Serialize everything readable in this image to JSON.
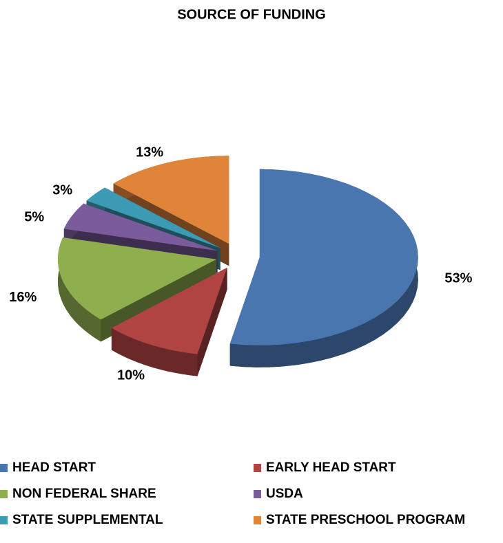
{
  "chart_data": {
    "type": "pie",
    "title": "SOURCE OF FUNDING",
    "categories": [
      "HEAD START",
      "EARLY HEAD START",
      "NON FEDERAL SHARE",
      "USDA",
      "STATE SUPPLEMENTAL",
      "STATE PRESCHOOL PROGRAM"
    ],
    "values": [
      53,
      10,
      16,
      5,
      3,
      13
    ],
    "value_labels": [
      "53%",
      "10%",
      "16%",
      "5%",
      "3%",
      "13%"
    ],
    "colors": [
      "#4a76b0",
      "#b04443",
      "#8fae4e",
      "#7a5c9c",
      "#3d9ab4",
      "#e0843a"
    ],
    "legend": "bottom"
  }
}
